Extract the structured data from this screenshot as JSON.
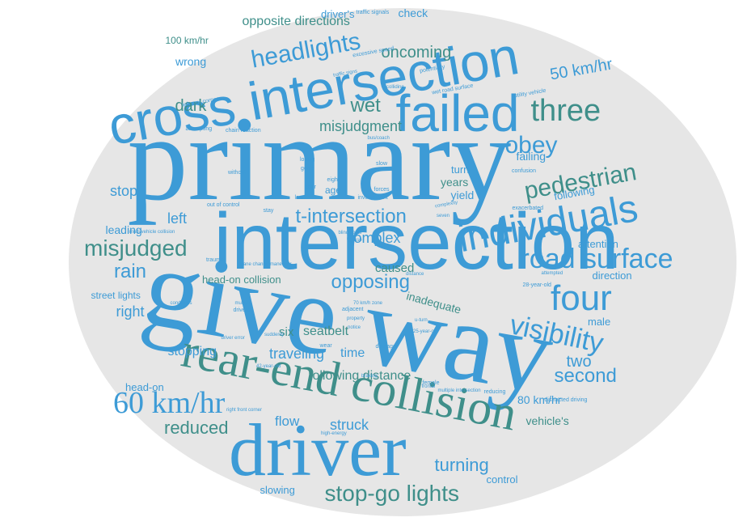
{
  "palette": {
    "background": "#ffffff",
    "oval": "#e6e6e6",
    "blue": "#3d9bd6",
    "teal": "#3f8f8a",
    "mid": "#3b9ab8"
  },
  "words": [
    {
      "t": "primary",
      "c": "blue"
    },
    {
      "t": "give way",
      "c": "blue"
    },
    {
      "t": "intersection",
      "c": "blue"
    },
    {
      "t": "driver",
      "c": "blue"
    },
    {
      "t": "cross intersection",
      "c": "blue"
    },
    {
      "t": "rear-end collision",
      "c": "teal"
    },
    {
      "t": "failed",
      "c": "blue"
    },
    {
      "t": "individuals",
      "c": "blue"
    },
    {
      "t": "four",
      "c": "blue"
    },
    {
      "t": "60 km/hr",
      "c": "blue"
    },
    {
      "t": "road surface",
      "c": "blue"
    },
    {
      "t": "visibility",
      "c": "blue"
    },
    {
      "t": "three",
      "c": "teal"
    },
    {
      "t": "pedestrian",
      "c": "teal"
    },
    {
      "t": "headlights",
      "c": "blue"
    },
    {
      "t": "obey",
      "c": "blue"
    },
    {
      "t": "stop-go lights",
      "c": "teal"
    },
    {
      "t": "misjudged",
      "c": "teal"
    },
    {
      "t": "wet",
      "c": "teal"
    },
    {
      "t": "second",
      "c": "blue"
    },
    {
      "t": "opposing",
      "c": "blue"
    },
    {
      "t": "t-intersection",
      "c": "blue"
    },
    {
      "t": "turning",
      "c": "blue"
    },
    {
      "t": "50 km/hr",
      "c": "blue"
    },
    {
      "t": "oncoming",
      "c": "teal"
    },
    {
      "t": "rain",
      "c": "blue"
    },
    {
      "t": "misjudgment",
      "c": "teal"
    },
    {
      "t": "reduced",
      "c": "teal"
    },
    {
      "t": "complex",
      "c": "blue"
    },
    {
      "t": "two",
      "c": "blue"
    },
    {
      "t": "stop",
      "c": "blue"
    },
    {
      "t": "left",
      "c": "blue"
    },
    {
      "t": "right",
      "c": "blue"
    },
    {
      "t": "dark",
      "c": "teal"
    },
    {
      "t": "struck",
      "c": "blue"
    },
    {
      "t": "traveling",
      "c": "blue"
    },
    {
      "t": "flow",
      "c": "blue"
    },
    {
      "t": "opposite directions",
      "c": "teal"
    },
    {
      "t": "time",
      "c": "blue"
    },
    {
      "t": "following distance",
      "c": "teal"
    },
    {
      "t": "stopping",
      "c": "blue"
    },
    {
      "t": "seatbelt",
      "c": "teal"
    },
    {
      "t": "six",
      "c": "teal"
    },
    {
      "t": "inadequate",
      "c": "teal"
    },
    {
      "t": "caused",
      "c": "teal"
    },
    {
      "t": "head-on collision",
      "c": "teal"
    },
    {
      "t": "wrong",
      "c": "blue"
    },
    {
      "t": "100 km/hr",
      "c": "teal"
    },
    {
      "t": "check",
      "c": "blue"
    },
    {
      "t": "driver's",
      "c": "blue"
    },
    {
      "t": "leading",
      "c": "blue"
    },
    {
      "t": "yield",
      "c": "blue"
    },
    {
      "t": "turn",
      "c": "blue"
    },
    {
      "t": "years",
      "c": "teal"
    },
    {
      "t": "failing",
      "c": "blue"
    },
    {
      "t": "following",
      "c": "blue"
    },
    {
      "t": "attention",
      "c": "blue"
    },
    {
      "t": "direction",
      "c": "blue"
    },
    {
      "t": "male",
      "c": "blue"
    },
    {
      "t": "80 km/hr",
      "c": "blue"
    },
    {
      "t": "vehicle's",
      "c": "teal"
    },
    {
      "t": "control",
      "c": "blue"
    },
    {
      "t": "slowing",
      "c": "blue"
    },
    {
      "t": "head-on",
      "c": "blue"
    },
    {
      "t": "street lights",
      "c": "blue"
    },
    {
      "t": "age",
      "c": "blue"
    },
    {
      "t": "traffic signals",
      "c": "blue"
    },
    {
      "t": "excessive speed",
      "c": "blue"
    },
    {
      "t": "traffic signs",
      "c": "blue"
    },
    {
      "t": "potentially",
      "c": "blue"
    },
    {
      "t": "utility vehicle",
      "c": "blue"
    },
    {
      "t": "colliding",
      "c": "blue"
    },
    {
      "t": "wet road surface",
      "c": "blue"
    },
    {
      "t": "left rear corner",
      "c": "blue"
    },
    {
      "t": "attempting",
      "c": "blue"
    },
    {
      "t": "chain reaction",
      "c": "blue"
    },
    {
      "t": "bus/coach",
      "c": "blue"
    },
    {
      "t": "losing",
      "c": "blue"
    },
    {
      "t": "gone",
      "c": "blue"
    },
    {
      "t": "slow",
      "c": "blue"
    },
    {
      "t": "without",
      "c": "blue"
    },
    {
      "t": "confusion",
      "c": "blue"
    },
    {
      "t": "eight",
      "c": "blue"
    },
    {
      "t": "poor",
      "c": "blue"
    },
    {
      "t": "forces",
      "c": "blue"
    },
    {
      "t": "lane",
      "c": "blue"
    },
    {
      "t": "involvement",
      "c": "blue"
    },
    {
      "t": "complexity",
      "c": "blue"
    },
    {
      "t": "exacerbated",
      "c": "blue"
    },
    {
      "t": "out of control",
      "c": "blue"
    },
    {
      "t": "stay",
      "c": "blue"
    },
    {
      "t": "seven",
      "c": "blue"
    },
    {
      "t": "multi-vehicle collision",
      "c": "blue"
    },
    {
      "t": "blind spots",
      "c": "blue"
    },
    {
      "t": "use",
      "c": "blue"
    },
    {
      "t": "trauma",
      "c": "blue"
    },
    {
      "t": "lane change maneuver",
      "c": "blue"
    },
    {
      "t": "distance",
      "c": "blue"
    },
    {
      "t": "attempted",
      "c": "blue"
    },
    {
      "t": "28-year-old",
      "c": "blue"
    },
    {
      "t": "conditions",
      "c": "blue"
    },
    {
      "t": "multiple",
      "c": "blue"
    },
    {
      "t": "drivers",
      "c": "blue"
    },
    {
      "t": "adjacent",
      "c": "blue"
    },
    {
      "t": "property",
      "c": "blue"
    },
    {
      "t": "70 km/h zone",
      "c": "blue"
    },
    {
      "t": "u-turn",
      "c": "blue"
    },
    {
      "t": "25-year-old",
      "c": "blue"
    },
    {
      "t": "notice",
      "c": "blue"
    },
    {
      "t": "suddenly",
      "c": "blue"
    },
    {
      "t": "driver error",
      "c": "blue"
    },
    {
      "t": "wear",
      "c": "blue"
    },
    {
      "t": "damage",
      "c": "blue"
    },
    {
      "t": "42-year-old",
      "c": "blue"
    },
    {
      "t": "braking",
      "c": "blue"
    },
    {
      "t": "frontal",
      "c": "blue"
    },
    {
      "t": "female",
      "c": "blue"
    },
    {
      "t": "multiple intersection",
      "c": "blue"
    },
    {
      "t": "reducing",
      "c": "blue"
    },
    {
      "t": "distracted driving",
      "c": "blue"
    },
    {
      "t": "right front corner",
      "c": "blue"
    },
    {
      "t": "high-energy",
      "c": "blue"
    }
  ]
}
